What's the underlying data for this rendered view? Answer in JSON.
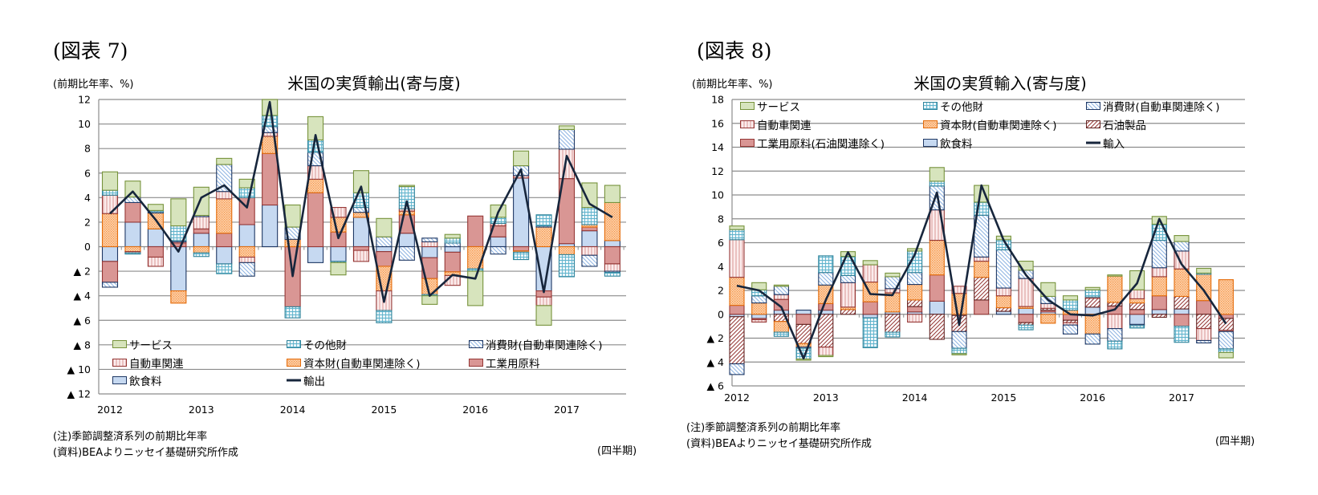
{
  "figures": [
    {
      "figure_label": "(図表 7)",
      "unit_label": "(前期比年率、%)",
      "note": "(注)季節調整済系列の前期比年率",
      "source": "(資料)BEAよりニッセイ基礎研究所作成",
      "x_unit": "(四半期)"
    },
    {
      "figure_label": "(図表 8)",
      "unit_label": "(前期比年率、%)",
      "note": "(注)季節調整済系列の前期比年率",
      "source": "(資料)BEAよりニッセイ基礎研究所作成",
      "x_unit": "(四半期)"
    }
  ],
  "chart_data": [
    {
      "type": "bar",
      "stacked": true,
      "title": "米国の実質輸出(寄与度)",
      "ylabel": "(前期比年率、%)",
      "xlabel": "(四半期)",
      "ylim": [
        -12,
        12
      ],
      "y_ticks": [
        12,
        10,
        8,
        6,
        4,
        2,
        0,
        -2,
        -4,
        -6,
        -8,
        -10,
        -12
      ],
      "y_tick_labels": [
        "12",
        "10",
        "8",
        "6",
        "4",
        "2",
        "0",
        "▲ 2",
        "▲ 4",
        "▲ 6",
        "▲ 8",
        "▲ 10",
        "▲ 12"
      ],
      "x_tick_labels": [
        "2012",
        "2013",
        "2014",
        "2015",
        "2016",
        "2017"
      ],
      "grid": true,
      "legend_position": "bottom-inside",
      "categories": [
        "2012Q1",
        "2012Q2",
        "2012Q3",
        "2012Q4",
        "2013Q1",
        "2013Q2",
        "2013Q3",
        "2013Q4",
        "2014Q1",
        "2014Q2",
        "2014Q3",
        "2014Q4",
        "2015Q1",
        "2015Q2",
        "2015Q3",
        "2015Q4",
        "2016Q1",
        "2016Q2",
        "2016Q3",
        "2016Q4",
        "2017Q1",
        "2017Q2",
        "2017Q3"
      ],
      "legend_order": [
        "サービス",
        "その他財",
        "消費財(自動車関連除く)",
        "自動車関連",
        "資本財(自動車関連除く)",
        "工業用原料",
        "飲食料",
        "輸出"
      ],
      "series": [
        {
          "name": "飲食料",
          "kind": "bar",
          "pattern": "blue",
          "color": "#c6d9f1",
          "values": [
            -1.2,
            2.0,
            1.45,
            -3.6,
            1.1,
            -1.4,
            1.8,
            3.4,
            0,
            -1.3,
            -1.2,
            2.4,
            -0.4,
            1.1,
            -0.9,
            -0.45,
            0,
            0.8,
            5.6,
            -3.6,
            0.25,
            1.3,
            0.5
          ]
        },
        {
          "name": "工業用原料",
          "kind": "bar",
          "pattern": "red",
          "color": "#d99694",
          "values": [
            -1.7,
            1.6,
            -0.85,
            0.3,
            0.35,
            1.1,
            2.2,
            4.2,
            -4.9,
            4.4,
            1.2,
            -0.3,
            -1.2,
            1.5,
            -1.7,
            -1.6,
            2.5,
            0.9,
            -0.35,
            -0.5,
            5.3,
            0.3,
            -1.4
          ]
        },
        {
          "name": "資本財(自動車関連除く)",
          "kind": "bar",
          "pattern": "orange",
          "color": "#fac090",
          "values": [
            2.7,
            -0.4,
            1.3,
            -1.0,
            -0.5,
            2.8,
            -0.85,
            1.4,
            0.6,
            1.1,
            1.2,
            0.4,
            -2.0,
            0.3,
            -1.3,
            -0.3,
            -1.8,
            0,
            -0.1,
            1.6,
            -0.65,
            0.2,
            3.1
          ]
        },
        {
          "name": "自動車関連",
          "kind": "bar",
          "pattern": "pink",
          "color": "#e6b9b8",
          "values": [
            1.5,
            -0.1,
            -0.75,
            0.1,
            1.0,
            0.6,
            -0.45,
            0.3,
            0,
            1.1,
            0.8,
            -0.9,
            -1.6,
            0.2,
            0.4,
            -0.8,
            0,
            0.2,
            0.2,
            -0.7,
            2.4,
            -0.7,
            -0.6
          ]
        },
        {
          "name": "消費財(自動車関連除く)",
          "kind": "bar",
          "pattern": "cons",
          "color": "#8db3e2",
          "values": [
            -0.4,
            0.45,
            0.1,
            0.1,
            0.1,
            2.2,
            -1.1,
            0.5,
            1.0,
            1.1,
            0,
            0.4,
            0.8,
            -1.1,
            0.3,
            0.3,
            0,
            -0.6,
            0.8,
            0.1,
            1.6,
            -0.9,
            -0.1
          ]
        },
        {
          "name": "その他財",
          "kind": "bar",
          "pattern": "other",
          "color": "#b7dee8",
          "values": [
            0.4,
            -0.1,
            0.1,
            1.2,
            -0.3,
            -0.8,
            0.8,
            0.9,
            -0.9,
            1.0,
            -0.1,
            1.2,
            -1.0,
            1.8,
            -0.1,
            0.4,
            -0.2,
            0.5,
            -0.6,
            0.9,
            -1.8,
            1.4,
            -0.3
          ]
        },
        {
          "name": "サービス",
          "kind": "bar",
          "pattern": "service",
          "color": "#d7e4bd",
          "values": [
            1.5,
            1.3,
            0.5,
            2.2,
            2.3,
            0.5,
            0.7,
            1.3,
            1.8,
            1.9,
            -1.0,
            1.8,
            1.5,
            0.1,
            -0.7,
            0.3,
            -2.8,
            1.0,
            1.2,
            -1.6,
            0.3,
            2.0,
            1.4
          ]
        },
        {
          "name": "輸出",
          "kind": "line",
          "color": "#17263c",
          "values": [
            2.7,
            4.5,
            2.2,
            -0.4,
            4.0,
            5.0,
            3.2,
            11.8,
            -2.4,
            9.1,
            0.7,
            4.9,
            -4.5,
            3.7,
            -4.0,
            -2.3,
            -2.6,
            2.8,
            6.3,
            -3.7,
            7.4,
            3.5,
            2.4
          ]
        }
      ]
    },
    {
      "type": "bar",
      "stacked": true,
      "title": "米国の実質輸入(寄与度)",
      "ylabel": "(前期比年率、%)",
      "xlabel": "(四半期)",
      "ylim": [
        -6,
        18
      ],
      "y_ticks": [
        18,
        16,
        14,
        12,
        10,
        8,
        6,
        4,
        2,
        0,
        -2,
        -4,
        -6
      ],
      "y_tick_labels": [
        "18",
        "16",
        "14",
        "12",
        "10",
        "8",
        "6",
        "4",
        "2",
        "0",
        "▲ 2",
        "▲ 4",
        "▲ 6"
      ],
      "x_tick_labels": [
        "2012",
        "2013",
        "2014",
        "2015",
        "2016",
        "2017"
      ],
      "grid": true,
      "legend_position": "top-inside",
      "categories": [
        "2012Q1",
        "2012Q2",
        "2012Q3",
        "2012Q4",
        "2013Q1",
        "2013Q2",
        "2013Q3",
        "2013Q4",
        "2014Q1",
        "2014Q2",
        "2014Q3",
        "2014Q4",
        "2015Q1",
        "2015Q2",
        "2015Q3",
        "2015Q4",
        "2016Q1",
        "2016Q2",
        "2016Q3",
        "2016Q4",
        "2017Q1",
        "2017Q2",
        "2017Q3"
      ],
      "legend_order": [
        "サービス",
        "その他財",
        "消費財(自動車関連除く)",
        "自動車関連",
        "資本財(自動車関連除く)",
        "石油製品",
        "工業用原料(石油関連除く)",
        "飲食料",
        "輸入"
      ],
      "series": [
        {
          "name": "飲食料",
          "kind": "bar",
          "pattern": "blue",
          "color": "#c6d9f1",
          "values": [
            -0.2,
            -0.35,
            0.35,
            0.35,
            0.35,
            0,
            -0.3,
            0.2,
            0.2,
            1.1,
            -0.1,
            0,
            0.25,
            0.5,
            0.2,
            0,
            0.6,
            0,
            -0.85,
            0.4,
            0.45,
            0,
            0
          ]
        },
        {
          "name": "工業用原料(石油関連除く)",
          "kind": "bar",
          "pattern": "red",
          "color": "#d99694",
          "values": [
            0.75,
            -0.1,
            0.9,
            -0.85,
            0.55,
            0,
            1.05,
            0,
            0.45,
            2.2,
            0,
            1.2,
            0,
            -0.7,
            0.15,
            -0.5,
            0,
            0.7,
            0.4,
            1.15,
            -1.0,
            1.15,
            -0.35
          ]
        },
        {
          "name": "石油製品",
          "kind": "bar",
          "pattern": "oil",
          "color": "#953735",
          "values": [
            -3.95,
            0,
            -0.6,
            -1.6,
            -2.75,
            0.4,
            0,
            -1.5,
            0.55,
            -2.1,
            -1.35,
            1.9,
            0.3,
            -0.2,
            0.15,
            -0.2,
            0.75,
            0.3,
            0.55,
            -0.25,
            1.05,
            -1.2,
            -1.0
          ]
        },
        {
          "name": "資本財(自動車関連除く)",
          "kind": "bar",
          "pattern": "orange",
          "color": "#fac090",
          "values": [
            2.35,
            0.95,
            -0.9,
            -0.3,
            1.55,
            0.2,
            1.65,
            1.6,
            1.3,
            2.9,
            1.75,
            1.35,
            1.0,
            0.15,
            -0.75,
            0.35,
            -1.65,
            2.2,
            0.35,
            1.6,
            2.3,
            2.2,
            2.9
          ]
        },
        {
          "name": "自動車関連",
          "kind": "bar",
          "pattern": "pink",
          "color": "#e6b9b8",
          "values": [
            3.15,
            -0.2,
            0.4,
            0,
            -0.7,
            2.05,
            1.45,
            0.35,
            -0.65,
            2.55,
            0.6,
            0.35,
            0.65,
            2.35,
            0.4,
            -0.2,
            0.1,
            -1.2,
            0.75,
            0.75,
            1.5,
            -1.0,
            -0.1
          ]
        },
        {
          "name": "消費財(自動車関連除く)",
          "kind": "bar",
          "pattern": "cons",
          "color": "#8db3e2",
          "values": [
            -0.9,
            0.6,
            0.7,
            -0.1,
            1.05,
            0.6,
            0,
            1.0,
            1.0,
            2.0,
            -1.4,
            3.5,
            3.2,
            0.7,
            0.6,
            -0.75,
            -0.85,
            -1.05,
            -0.1,
            2.3,
            0.8,
            -0.2,
            -1.45
          ]
        },
        {
          "name": "その他財",
          "kind": "bar",
          "pattern": "other",
          "color": "#b7dee8",
          "values": [
            0.85,
            0.5,
            -0.35,
            -0.9,
            1.4,
            1.6,
            -2.5,
            -0.4,
            1.8,
            0.4,
            -0.45,
            1.1,
            0.85,
            -0.4,
            0,
            0.85,
            0.6,
            -0.65,
            -0.2,
            1.35,
            -1.35,
            0.1,
            -0.3
          ]
        },
        {
          "name": "サービス",
          "kind": "bar",
          "pattern": "service",
          "color": "#d7e4bd",
          "values": [
            0.3,
            0.6,
            0.1,
            -0.1,
            -0.1,
            0.4,
            0.35,
            0.3,
            0.2,
            1.15,
            -0.1,
            1.4,
            0.3,
            0.75,
            1.15,
            0.35,
            0.2,
            0.1,
            1.6,
            0.65,
            0.5,
            0.4,
            -0.45
          ]
        },
        {
          "name": "輸入",
          "kind": "line",
          "color": "#17263c",
          "values": [
            2.4,
            2.0,
            0.6,
            -3.7,
            1.2,
            5.2,
            1.7,
            1.6,
            5.0,
            10.2,
            -0.9,
            10.8,
            6.2,
            3.3,
            1.2,
            0.0,
            -0.1,
            0.4,
            2.6,
            8.0,
            4.2,
            2.0,
            -0.8
          ]
        }
      ]
    }
  ]
}
